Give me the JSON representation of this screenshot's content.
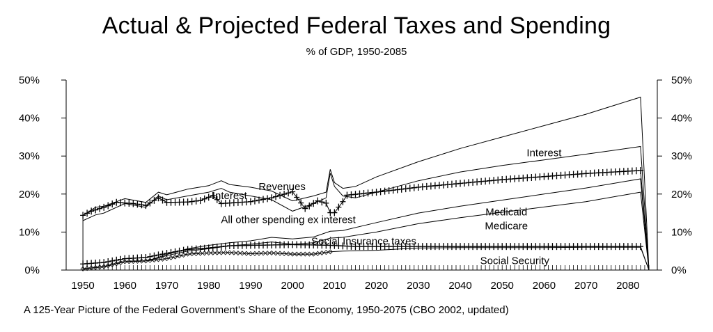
{
  "title": "Actual & Projected Federal Taxes and Spending",
  "subtitle": "% of GDP, 1950-2085",
  "caption": "A 125-Year Picture of the Federal Government's Share of the Economy, 1950-2075 (CBO 2002, updated)",
  "chart_data": {
    "type": "area",
    "xlim": [
      1946,
      2087
    ],
    "ylim": [
      0,
      50
    ],
    "x_ticks": [
      1950,
      1960,
      1970,
      1980,
      1990,
      2000,
      2010,
      2020,
      2030,
      2040,
      2050,
      2060,
      2070,
      2080
    ],
    "y_ticks": [
      "0%",
      "10%",
      "20%",
      "30%",
      "40%",
      "50%"
    ],
    "y_tick_values": [
      0,
      10,
      20,
      30,
      40,
      50
    ],
    "secondary_y_axis": true,
    "grid": false,
    "legend": "none (inline labels)",
    "series": [
      {
        "name": "Social Security",
        "role": "stack layer",
        "marker": "diamond",
        "points": [
          [
            1950,
            0.3
          ],
          [
            1955,
            0.9
          ],
          [
            1960,
            2.2
          ],
          [
            1965,
            2.4
          ],
          [
            1970,
            3.0
          ],
          [
            1975,
            4.2
          ],
          [
            1980,
            4.5
          ],
          [
            1985,
            4.6
          ],
          [
            1990,
            4.3
          ],
          [
            1995,
            4.5
          ],
          [
            2000,
            4.2
          ],
          [
            2005,
            4.2
          ],
          [
            2009,
            4.8
          ],
          [
            2012,
            5.0
          ],
          [
            2020,
            5.2
          ],
          [
            2030,
            5.8
          ],
          [
            2040,
            5.9
          ],
          [
            2050,
            5.9
          ],
          [
            2060,
            5.9
          ],
          [
            2070,
            6.0
          ],
          [
            2083,
            6.0
          ]
        ]
      },
      {
        "name": "Medicare",
        "role": "stack layer",
        "points": [
          [
            1950,
            0.3
          ],
          [
            1955,
            0.9
          ],
          [
            1960,
            2.2
          ],
          [
            1965,
            2.4
          ],
          [
            1967,
            2.9
          ],
          [
            1970,
            3.8
          ],
          [
            1975,
            5.0
          ],
          [
            1980,
            5.6
          ],
          [
            1985,
            6.4
          ],
          [
            1990,
            6.8
          ],
          [
            1995,
            7.4
          ],
          [
            2000,
            6.8
          ],
          [
            2005,
            7.2
          ],
          [
            2009,
            8.4
          ],
          [
            2012,
            8.6
          ],
          [
            2020,
            10.0
          ],
          [
            2030,
            12.2
          ],
          [
            2040,
            13.8
          ],
          [
            2050,
            15.2
          ],
          [
            2060,
            16.6
          ],
          [
            2070,
            18.0
          ],
          [
            2083,
            20.5
          ]
        ]
      },
      {
        "name": "Medicaid",
        "role": "stack layer",
        "points": [
          [
            1950,
            0.3
          ],
          [
            1955,
            0.9
          ],
          [
            1960,
            2.2
          ],
          [
            1965,
            2.4
          ],
          [
            1967,
            3.0
          ],
          [
            1970,
            4.1
          ],
          [
            1975,
            5.6
          ],
          [
            1980,
            6.5
          ],
          [
            1985,
            7.2
          ],
          [
            1990,
            7.7
          ],
          [
            1995,
            8.6
          ],
          [
            2000,
            8.2
          ],
          [
            2005,
            8.7
          ],
          [
            2009,
            10.2
          ],
          [
            2012,
            10.4
          ],
          [
            2020,
            12.5
          ],
          [
            2030,
            15.0
          ],
          [
            2040,
            16.8
          ],
          [
            2050,
            18.4
          ],
          [
            2060,
            20.0
          ],
          [
            2070,
            21.6
          ],
          [
            2083,
            24.0
          ]
        ]
      },
      {
        "name": "All other spending ex interest",
        "role": "stack layer",
        "points": [
          [
            1950,
            13.0
          ],
          [
            1953,
            14.5
          ],
          [
            1955,
            15.0
          ],
          [
            1960,
            17.5
          ],
          [
            1965,
            16.5
          ],
          [
            1968,
            19.5
          ],
          [
            1970,
            18.5
          ],
          [
            1975,
            19.5
          ],
          [
            1980,
            20.5
          ],
          [
            1983,
            21.5
          ],
          [
            1985,
            20.5
          ],
          [
            1990,
            19.5
          ],
          [
            1995,
            18.5
          ],
          [
            2000,
            15.5
          ],
          [
            2005,
            17.5
          ],
          [
            2008,
            19.0
          ],
          [
            2009,
            25.5
          ],
          [
            2010,
            22.0
          ],
          [
            2012,
            19.5
          ],
          [
            2015,
            19.0
          ],
          [
            2020,
            20.5
          ],
          [
            2030,
            23.5
          ],
          [
            2040,
            25.8
          ],
          [
            2050,
            27.5
          ],
          [
            2060,
            29.0
          ],
          [
            2070,
            30.5
          ],
          [
            2083,
            32.5
          ]
        ]
      },
      {
        "name": "Interest",
        "role": "stack layer (total spending)",
        "points": [
          [
            1950,
            14.4
          ],
          [
            1953,
            16.5
          ],
          [
            1955,
            16.8
          ],
          [
            1960,
            18.8
          ],
          [
            1965,
            17.8
          ],
          [
            1968,
            20.5
          ],
          [
            1970,
            19.8
          ],
          [
            1975,
            21.3
          ],
          [
            1980,
            22.2
          ],
          [
            1983,
            23.5
          ],
          [
            1985,
            22.5
          ],
          [
            1990,
            21.8
          ],
          [
            1995,
            20.8
          ],
          [
            2000,
            18.2
          ],
          [
            2005,
            19.5
          ],
          [
            2008,
            20.5
          ],
          [
            2009,
            26.5
          ],
          [
            2010,
            23.0
          ],
          [
            2012,
            21.5
          ],
          [
            2015,
            22.0
          ],
          [
            2020,
            24.5
          ],
          [
            2030,
            28.5
          ],
          [
            2040,
            32.0
          ],
          [
            2050,
            35.0
          ],
          [
            2060,
            38.0
          ],
          [
            2070,
            41.0
          ],
          [
            2083,
            45.5
          ]
        ]
      },
      {
        "name": "Revenues",
        "role": "line",
        "marker": "plus",
        "points": [
          [
            1950,
            14.4
          ],
          [
            1952,
            15.5
          ],
          [
            1955,
            16.5
          ],
          [
            1958,
            17.8
          ],
          [
            1962,
            17.5
          ],
          [
            1965,
            17.0
          ],
          [
            1968,
            19.0
          ],
          [
            1970,
            17.8
          ],
          [
            1975,
            17.9
          ],
          [
            1978,
            18.3
          ],
          [
            1981,
            19.6
          ],
          [
            1983,
            17.5
          ],
          [
            1990,
            18.0
          ],
          [
            1995,
            19.0
          ],
          [
            2000,
            20.6
          ],
          [
            2003,
            16.2
          ],
          [
            2006,
            18.2
          ],
          [
            2008,
            17.6
          ],
          [
            2009,
            15.1
          ],
          [
            2010,
            15.1
          ],
          [
            2012,
            18.0
          ],
          [
            2013,
            19.7
          ],
          [
            2020,
            20.5
          ],
          [
            2030,
            21.8
          ],
          [
            2040,
            22.8
          ],
          [
            2050,
            23.8
          ],
          [
            2060,
            24.6
          ],
          [
            2070,
            25.4
          ],
          [
            2083,
            26.2
          ]
        ]
      },
      {
        "name": "Social insurance taxes",
        "role": "line",
        "marker": "plus",
        "points": [
          [
            1950,
            1.6
          ],
          [
            1955,
            2.0
          ],
          [
            1960,
            3.0
          ],
          [
            1965,
            3.3
          ],
          [
            1970,
            4.4
          ],
          [
            1975,
            5.4
          ],
          [
            1980,
            5.8
          ],
          [
            1985,
            6.4
          ],
          [
            1990,
            6.5
          ],
          [
            1995,
            6.6
          ],
          [
            2000,
            6.7
          ],
          [
            2009,
            6.5
          ],
          [
            2015,
            6.2
          ],
          [
            2020,
            6.2
          ],
          [
            2030,
            6.2
          ],
          [
            2040,
            6.2
          ],
          [
            2050,
            6.2
          ],
          [
            2060,
            6.2
          ],
          [
            2070,
            6.2
          ],
          [
            2083,
            6.2
          ]
        ]
      }
    ],
    "labels": [
      {
        "text": "Revenues",
        "x": 1997.5,
        "y": 22.0
      },
      {
        "text": "Interest",
        "x": 1985,
        "y": 19.6
      },
      {
        "text": "All other spending ex interest",
        "x": 1999,
        "y": 13.3
      },
      {
        "text": "Interest",
        "x": 2060,
        "y": 30.9
      },
      {
        "text": "Medicaid",
        "x": 2051,
        "y": 15.3
      },
      {
        "text": "Medicare",
        "x": 2051,
        "y": 11.6
      },
      {
        "text": "Social Insurance taxes",
        "x": 2017,
        "y": 7.6
      },
      {
        "text": "Social Security",
        "x": 2053,
        "y": 2.5
      }
    ]
  }
}
